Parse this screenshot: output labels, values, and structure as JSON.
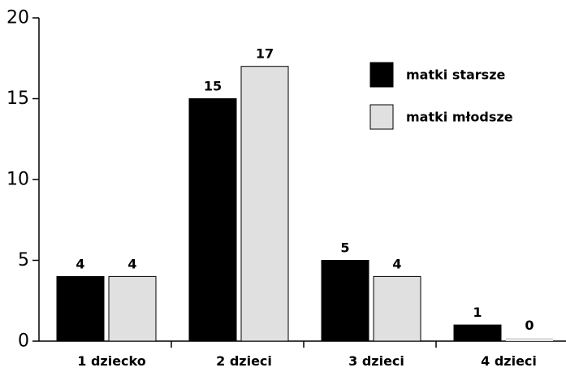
{
  "chart_data": {
    "type": "bar",
    "categories": [
      "1 dziecko",
      "2 dzieci",
      "3 dzieci",
      "4 dzieci"
    ],
    "series": [
      {
        "name": "matki starsze",
        "values": [
          4,
          15,
          5,
          1
        ],
        "color": "#000000"
      },
      {
        "name": "matki młodsze",
        "values": [
          4,
          17,
          4,
          0
        ],
        "color": "#e0e0e0"
      }
    ],
    "data_labels": [
      [
        "4",
        "15",
        "5",
        "1"
      ],
      [
        "4",
        "17",
        "4",
        "0"
      ]
    ],
    "yticks": [
      "0",
      "5",
      "10",
      "15",
      "20"
    ],
    "ylim": [
      0,
      20
    ],
    "grid": false,
    "legend_position": "top-right",
    "title": "",
    "xlabel": "",
    "ylabel": ""
  }
}
